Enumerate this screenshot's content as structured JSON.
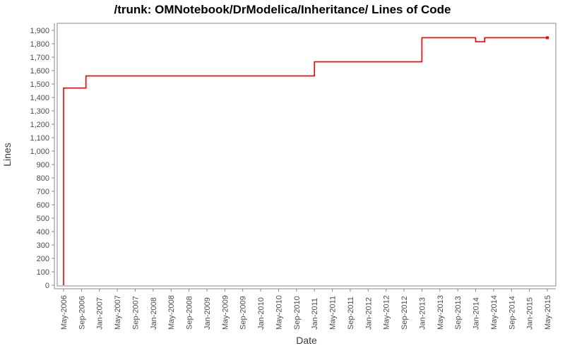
{
  "chart_data": {
    "type": "line",
    "title": "/trunk: OMNotebook/DrModelica/Inheritance/ Lines of Code",
    "xlabel": "Date",
    "ylabel": "Lines",
    "legend": "none",
    "grid": false,
    "ylim": [
      0,
      1950
    ],
    "y_tick_labels": [
      "0",
      "100",
      "200",
      "300",
      "400",
      "500",
      "600",
      "700",
      "800",
      "900",
      "1,000",
      "1,100",
      "1,200",
      "1,300",
      "1,400",
      "1,500",
      "1,600",
      "1,700",
      "1,800",
      "1,900"
    ],
    "x_tick_labels": [
      "May-2006",
      "Sep-2006",
      "Jan-2007",
      "May-2007",
      "Sep-2007",
      "Jan-2008",
      "May-2008",
      "Sep-2008",
      "Jan-2009",
      "May-2009",
      "Sep-2009",
      "Jan-2010",
      "May-2010",
      "Sep-2010",
      "Jan-2011",
      "May-2011",
      "Sep-2011",
      "Jan-2012",
      "May-2012",
      "Sep-2012",
      "Jan-2013",
      "May-2013",
      "Sep-2013",
      "Jan-2014",
      "May-2014",
      "Sep-2014",
      "Jan-2015",
      "May-2015"
    ],
    "series": [
      {
        "name": "Lines of Code",
        "color": "#ff0000",
        "points": [
          {
            "date": "2006-05",
            "loc": 0
          },
          {
            "date": "2006-05",
            "loc": 1470
          },
          {
            "date": "2006-10",
            "loc": 1470
          },
          {
            "date": "2006-10",
            "loc": 1560
          },
          {
            "date": "2011-01",
            "loc": 1560
          },
          {
            "date": "2011-01",
            "loc": 1665
          },
          {
            "date": "2013-01",
            "loc": 1665
          },
          {
            "date": "2013-01",
            "loc": 1845
          },
          {
            "date": "2014-01",
            "loc": 1845
          },
          {
            "date": "2014-01",
            "loc": 1815
          },
          {
            "date": "2014-03",
            "loc": 1815
          },
          {
            "date": "2014-03",
            "loc": 1845
          },
          {
            "date": "2015-05",
            "loc": 1845
          }
        ]
      }
    ],
    "colors": {
      "line": "#ff0000",
      "plot_border": "#888888",
      "axis_line": "#888888",
      "tick_text": "#4c4c4c",
      "axis_title_text": "#3c3c3c",
      "title_text": "#000000",
      "background": "#ffffff"
    }
  }
}
